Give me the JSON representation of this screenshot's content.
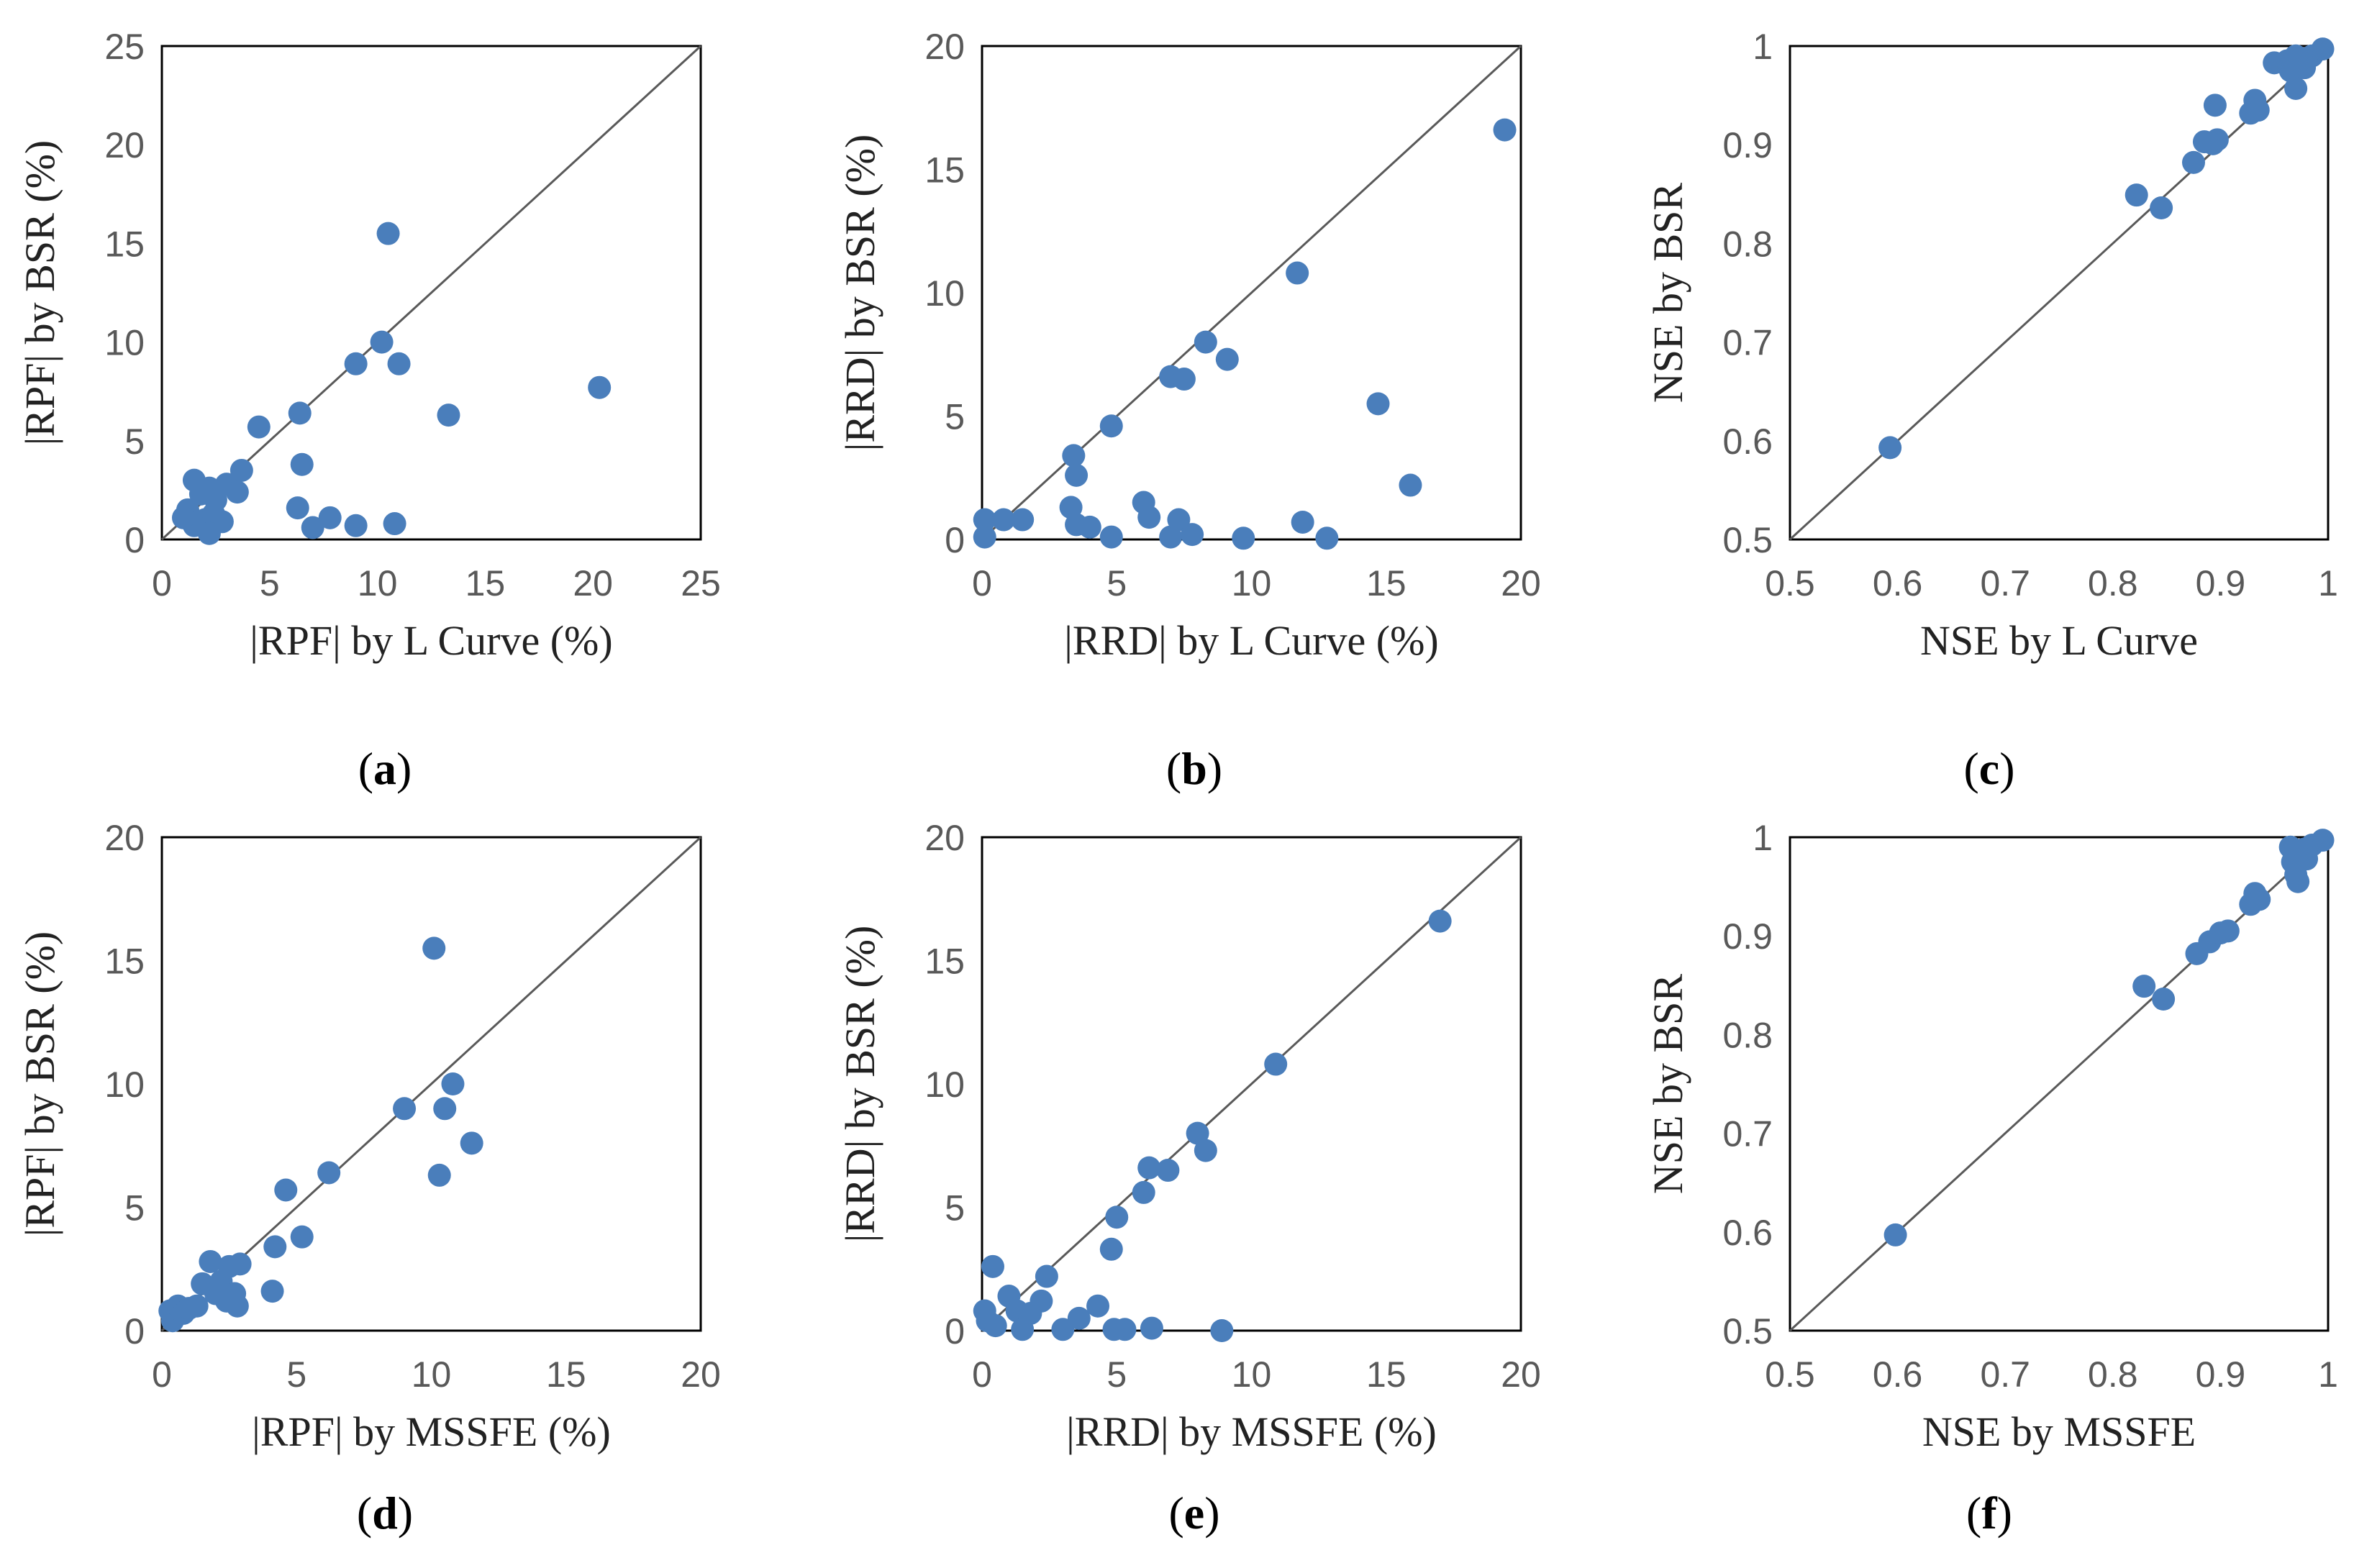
{
  "colors": {
    "point": "#4a7ebb",
    "axis": "#000000",
    "diagonal": "#595959"
  },
  "chart_data": [
    {
      "type": "scatter",
      "panel": "a",
      "xlabel": "|RPF| by L Curve (%)",
      "ylabel": "|RPF| by BSR (%)",
      "xlim": [
        0,
        25
      ],
      "ylim": [
        0,
        25
      ],
      "xticks": [
        "0",
        "5",
        "10",
        "15",
        "20",
        "25"
      ],
      "yticks": [
        "0",
        "5",
        "10",
        "15",
        "20",
        "25"
      ],
      "diagonal": true,
      "points": [
        [
          1.5,
          3.0
        ],
        [
          1.2,
          1.5
        ],
        [
          1.8,
          2.3
        ],
        [
          2.2,
          2.6
        ],
        [
          2.5,
          2.0
        ],
        [
          3.0,
          2.8
        ],
        [
          3.5,
          2.4
        ],
        [
          3.7,
          3.5
        ],
        [
          4.5,
          5.7
        ],
        [
          2.0,
          1.0
        ],
        [
          1.5,
          0.7
        ],
        [
          2.4,
          1.3
        ],
        [
          2.8,
          0.9
        ],
        [
          2.2,
          0.3
        ],
        [
          1.0,
          1.1
        ],
        [
          6.3,
          1.6
        ],
        [
          6.5,
          3.8
        ],
        [
          6.4,
          6.4
        ],
        [
          7.0,
          0.6
        ],
        [
          7.8,
          1.1
        ],
        [
          9.0,
          8.9
        ],
        [
          9.0,
          0.7
        ],
        [
          10.2,
          10.0
        ],
        [
          10.5,
          15.5
        ],
        [
          10.8,
          0.8
        ],
        [
          11.0,
          8.9
        ],
        [
          13.3,
          6.3
        ],
        [
          20.3,
          7.7
        ]
      ],
      "caption_letter": "a"
    },
    {
      "type": "scatter",
      "panel": "b",
      "xlabel": "|RRD| by L Curve (%)",
      "ylabel": "|RRD| by BSR (%)",
      "xlim": [
        0,
        20
      ],
      "ylim": [
        0,
        20
      ],
      "xticks": [
        "0",
        "5",
        "10",
        "15",
        "20"
      ],
      "yticks": [
        "0",
        "5",
        "10",
        "15",
        "20"
      ],
      "diagonal": true,
      "points": [
        [
          0.1,
          0.8
        ],
        [
          0.1,
          0.1
        ],
        [
          0.8,
          0.8
        ],
        [
          1.5,
          0.8
        ],
        [
          3.4,
          3.4
        ],
        [
          3.5,
          2.6
        ],
        [
          3.3,
          1.3
        ],
        [
          3.5,
          0.6
        ],
        [
          4.0,
          0.5
        ],
        [
          4.8,
          4.6
        ],
        [
          4.8,
          0.1
        ],
        [
          6.0,
          1.5
        ],
        [
          6.2,
          0.9
        ],
        [
          7.0,
          6.6
        ],
        [
          7.5,
          6.5
        ],
        [
          7.0,
          0.1
        ],
        [
          7.3,
          0.8
        ],
        [
          7.8,
          0.2
        ],
        [
          8.3,
          8.0
        ],
        [
          9.1,
          7.3
        ],
        [
          9.7,
          0.05
        ],
        [
          11.7,
          10.8
        ],
        [
          11.9,
          0.7
        ],
        [
          12.8,
          0.05
        ],
        [
          14.7,
          5.5
        ],
        [
          15.9,
          2.2
        ],
        [
          19.4,
          16.6
        ]
      ],
      "caption_letter": "b"
    },
    {
      "type": "scatter",
      "panel": "c",
      "xlabel": "NSE by L Curve",
      "ylabel": "NSE by BSR",
      "xlim": [
        0.5,
        1
      ],
      "ylim": [
        0.5,
        1
      ],
      "xticks": [
        "0.5",
        "0.6",
        "0.7",
        "0.8",
        "0.9",
        "1"
      ],
      "yticks": [
        "0.5",
        "0.6",
        "0.7",
        "0.8",
        "0.9",
        "1"
      ],
      "diagonal": true,
      "points": [
        [
          0.593,
          0.593
        ],
        [
          0.822,
          0.849
        ],
        [
          0.845,
          0.836
        ],
        [
          0.875,
          0.882
        ],
        [
          0.885,
          0.903
        ],
        [
          0.893,
          0.901
        ],
        [
          0.897,
          0.905
        ],
        [
          0.895,
          0.94
        ],
        [
          0.928,
          0.932
        ],
        [
          0.932,
          0.945
        ],
        [
          0.935,
          0.935
        ],
        [
          0.95,
          0.983
        ],
        [
          0.962,
          0.985
        ],
        [
          0.965,
          0.975
        ],
        [
          0.97,
          0.99
        ],
        [
          0.97,
          0.957
        ],
        [
          0.975,
          0.985
        ],
        [
          0.978,
          0.978
        ],
        [
          0.985,
          0.99
        ],
        [
          0.995,
          0.997
        ]
      ],
      "caption_letter": "c"
    },
    {
      "type": "scatter",
      "panel": "d",
      "xlabel": "|RPF| by MSSFE (%)",
      "ylabel": "|RPF| by BSR (%)",
      "xlim": [
        0,
        20
      ],
      "ylim": [
        0,
        20
      ],
      "xticks": [
        "0",
        "5",
        "10",
        "15",
        "20"
      ],
      "yticks": [
        "0",
        "5",
        "10",
        "15",
        "20"
      ],
      "diagonal": true,
      "points": [
        [
          0.3,
          0.8
        ],
        [
          0.4,
          0.4
        ],
        [
          0.6,
          1.0
        ],
        [
          0.8,
          0.7
        ],
        [
          1.0,
          0.9
        ],
        [
          1.3,
          1.0
        ],
        [
          1.5,
          1.9
        ],
        [
          1.8,
          2.8
        ],
        [
          2.0,
          1.5
        ],
        [
          2.2,
          2.0
        ],
        [
          2.5,
          2.6
        ],
        [
          2.4,
          1.2
        ],
        [
          2.7,
          1.5
        ],
        [
          2.9,
          2.7
        ],
        [
          2.8,
          1.0
        ],
        [
          4.1,
          1.6
        ],
        [
          4.2,
          3.4
        ],
        [
          4.6,
          5.7
        ],
        [
          5.2,
          3.8
        ],
        [
          6.2,
          6.4
        ],
        [
          9.0,
          9.0
        ],
        [
          10.1,
          15.5
        ],
        [
          10.3,
          6.3
        ],
        [
          10.5,
          9.0
        ],
        [
          10.8,
          10.0
        ],
        [
          11.5,
          7.6
        ]
      ],
      "caption_letter": "d"
    },
    {
      "type": "scatter",
      "panel": "e",
      "xlabel": "|RRD| by MSSFE (%)",
      "ylabel": "|RRD| by BSR (%)",
      "xlim": [
        0,
        20
      ],
      "ylim": [
        0,
        20
      ],
      "xticks": [
        "0",
        "5",
        "10",
        "15",
        "20"
      ],
      "yticks": [
        "0",
        "5",
        "10",
        "15",
        "20"
      ],
      "diagonal": true,
      "points": [
        [
          0.1,
          0.8
        ],
        [
          0.2,
          0.4
        ],
        [
          0.4,
          2.6
        ],
        [
          0.5,
          0.2
        ],
        [
          1.0,
          1.4
        ],
        [
          1.3,
          0.8
        ],
        [
          1.5,
          0.05
        ],
        [
          1.8,
          0.7
        ],
        [
          2.2,
          1.2
        ],
        [
          2.4,
          2.2
        ],
        [
          3.0,
          0.05
        ],
        [
          3.6,
          0.5
        ],
        [
          4.3,
          1.0
        ],
        [
          4.8,
          3.3
        ],
        [
          5.0,
          4.6
        ],
        [
          4.9,
          0.05
        ],
        [
          5.3,
          0.05
        ],
        [
          6.0,
          5.6
        ],
        [
          6.2,
          6.6
        ],
        [
          6.3,
          0.1
        ],
        [
          6.9,
          6.5
        ],
        [
          8.0,
          8.0
        ],
        [
          8.3,
          7.3
        ],
        [
          8.9,
          0.0
        ],
        [
          10.9,
          10.8
        ],
        [
          17.0,
          16.6
        ]
      ],
      "caption_letter": "e"
    },
    {
      "type": "scatter",
      "panel": "f",
      "xlabel": "NSE by MSSFE",
      "ylabel": "NSE by BSR",
      "xlim": [
        0.5,
        1
      ],
      "ylim": [
        0.5,
        1
      ],
      "xticks": [
        "0.5",
        "0.6",
        "0.7",
        "0.8",
        "0.9",
        "1"
      ],
      "yticks": [
        "0.5",
        "0.6",
        "0.7",
        "0.8",
        "0.9",
        "1"
      ],
      "diagonal": true,
      "points": [
        [
          0.598,
          0.597
        ],
        [
          0.829,
          0.849
        ],
        [
          0.847,
          0.836
        ],
        [
          0.878,
          0.882
        ],
        [
          0.89,
          0.894
        ],
        [
          0.9,
          0.903
        ],
        [
          0.907,
          0.905
        ],
        [
          0.928,
          0.932
        ],
        [
          0.932,
          0.943
        ],
        [
          0.936,
          0.937
        ],
        [
          0.965,
          0.99
        ],
        [
          0.967,
          0.975
        ],
        [
          0.97,
          0.962
        ],
        [
          0.972,
          0.955
        ],
        [
          0.978,
          0.988
        ],
        [
          0.98,
          0.978
        ],
        [
          0.985,
          0.992
        ],
        [
          0.995,
          0.997
        ]
      ],
      "caption_letter": "f"
    }
  ]
}
